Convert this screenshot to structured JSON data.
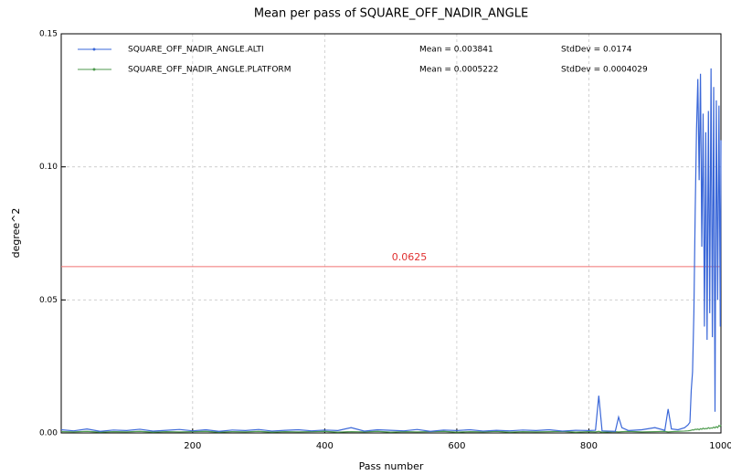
{
  "chart_data": {
    "type": "line",
    "title": "Mean per pass of SQUARE_OFF_NADIR_ANGLE",
    "x_label": "Pass number",
    "y_label": "degree^2",
    "x": [
      1,
      20,
      40,
      60,
      80,
      100,
      120,
      140,
      160,
      180,
      200,
      220,
      240,
      260,
      280,
      300,
      320,
      340,
      360,
      380,
      400,
      420,
      440,
      460,
      480,
      500,
      520,
      540,
      560,
      580,
      600,
      620,
      640,
      660,
      680,
      700,
      720,
      740,
      760,
      780,
      800,
      810,
      815,
      820,
      840,
      845,
      850,
      860,
      880,
      900,
      915,
      920,
      925,
      935,
      945,
      950,
      953,
      955,
      957,
      959,
      961,
      963,
      965,
      967,
      969,
      971,
      973,
      975,
      977,
      979,
      981,
      983,
      985,
      987,
      989,
      991,
      993,
      995,
      997,
      999,
      1000
    ],
    "series": [
      {
        "name": "SQUARE_OFF_NADIR_ANGLE.ALTI",
        "color": "#3a67d8",
        "stats": [
          "Mean = 0.003841",
          "StdDev = 0.0174"
        ],
        "values": [
          0.0012,
          0.0008,
          0.0015,
          0.0006,
          0.0011,
          0.0009,
          0.0014,
          0.0007,
          0.001,
          0.0013,
          0.0008,
          0.0012,
          0.0006,
          0.0011,
          0.0009,
          0.0013,
          0.0007,
          0.001,
          0.0012,
          0.0008,
          0.0011,
          0.0009,
          0.002,
          0.0007,
          0.0012,
          0.001,
          0.0008,
          0.0013,
          0.0006,
          0.0011,
          0.0009,
          0.0012,
          0.0007,
          0.001,
          0.0008,
          0.0011,
          0.0009,
          0.0012,
          0.0007,
          0.001,
          0.0009,
          0.001,
          0.014,
          0.0008,
          0.0006,
          0.006,
          0.002,
          0.0009,
          0.0012,
          0.002,
          0.001,
          0.009,
          0.0015,
          0.0012,
          0.002,
          0.003,
          0.004,
          0.016,
          0.023,
          0.045,
          0.083,
          0.114,
          0.133,
          0.095,
          0.135,
          0.07,
          0.12,
          0.04,
          0.113,
          0.035,
          0.121,
          0.045,
          0.137,
          0.036,
          0.13,
          0.008,
          0.125,
          0.05,
          0.123,
          0.04,
          0.11
        ]
      },
      {
        "name": "SQUARE_OFF_NADIR_ANGLE.PLATFORM",
        "color": "#4c9a4c",
        "stats": [
          "Mean = 0.0005222",
          "StdDev = 0.0004029"
        ],
        "values": [
          0.0005,
          0.0004,
          0.0006,
          0.0003,
          0.0005,
          0.0004,
          0.0006,
          0.0003,
          0.0005,
          0.0004,
          0.0005,
          0.0006,
          0.0003,
          0.0005,
          0.0004,
          0.0006,
          0.0003,
          0.0005,
          0.0004,
          0.0005,
          0.0006,
          0.0003,
          0.0005,
          0.0004,
          0.0006,
          0.0003,
          0.0005,
          0.0004,
          0.0005,
          0.0006,
          0.0003,
          0.0005,
          0.0004,
          0.0006,
          0.0003,
          0.0005,
          0.0004,
          0.0005,
          0.0006,
          0.0003,
          0.0005,
          0.0004,
          0.0006,
          0.0003,
          0.0005,
          0.0004,
          0.0005,
          0.0006,
          0.0004,
          0.0005,
          0.0006,
          0.0004,
          0.0005,
          0.0006,
          0.0007,
          0.0008,
          0.0009,
          0.001,
          0.0012,
          0.0011,
          0.0014,
          0.0013,
          0.0015,
          0.0012,
          0.0016,
          0.0014,
          0.0018,
          0.0015,
          0.0017,
          0.0016,
          0.002,
          0.0017,
          0.0019,
          0.0018,
          0.0022,
          0.0019,
          0.0024,
          0.002,
          0.0028,
          0.0025,
          0.003
        ]
      }
    ],
    "hline": {
      "value": 0.0625,
      "color": "#f07070"
    },
    "xlim": [
      1,
      1000
    ],
    "ylim": [
      0,
      0.15
    ],
    "xticks": [
      200,
      400,
      600,
      800,
      1000
    ],
    "yticks": [
      {
        "value": 0,
        "label": "0.00"
      },
      {
        "value": 0.05,
        "label": "0.05"
      },
      {
        "value": 0.1,
        "label": "0.10"
      },
      {
        "value": 0.15,
        "label": "0.15"
      }
    ],
    "grid": true
  }
}
